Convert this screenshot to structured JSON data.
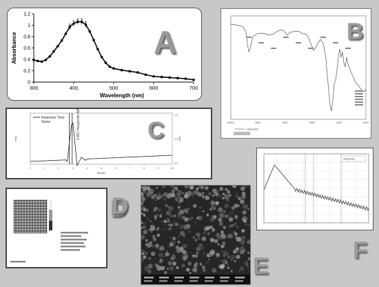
{
  "panels": {
    "A": {
      "letter": "A"
    },
    "B": {
      "letter": "B"
    },
    "C": {
      "letter": "C"
    },
    "D": {
      "letter": "D"
    },
    "E": {
      "letter": "E"
    },
    "F": {
      "letter": "F"
    }
  },
  "chart_data": [
    {
      "panel": "A",
      "type": "line",
      "xlabel": "Wavelength (nm)",
      "ylabel": "Absorbance",
      "xlim": [
        300,
        700
      ],
      "ylim": [
        0,
        1.2
      ],
      "xticks": [
        300,
        400,
        500,
        600,
        700
      ],
      "yticks": [
        0,
        0.2,
        0.4,
        0.6,
        0.8,
        1,
        1.2
      ],
      "series": [
        {
          "x": [
            300,
            310,
            320,
            330,
            340,
            350,
            360,
            370,
            380,
            390,
            400,
            410,
            420,
            430,
            440,
            450,
            460,
            470,
            480,
            490,
            500,
            520,
            540,
            560,
            580,
            600,
            620,
            640,
            660,
            680,
            700
          ],
          "y": [
            0.39,
            0.37,
            0.36,
            0.39,
            0.45,
            0.54,
            0.63,
            0.73,
            0.85,
            0.97,
            1.03,
            1.06,
            1.06,
            1.01,
            0.89,
            0.74,
            0.58,
            0.44,
            0.34,
            0.27,
            0.24,
            0.21,
            0.19,
            0.17,
            0.13,
            0.1,
            0.09,
            0.08,
            0.07,
            0.06,
            0.04
          ]
        }
      ]
    },
    {
      "panel": "C",
      "type": "line",
      "legend": [
        "Retention Time",
        "Name"
      ],
      "annotations": [
        "3.887 Hesperidin AAP"
      ],
      "xlabel": "Minutes",
      "ylabel_left": "mAU",
      "ylabel_right": "mAU",
      "xticks": [
        0,
        1,
        2,
        3,
        4,
        5,
        6,
        7,
        8,
        9,
        10
      ],
      "yticks_right": [
        "1.0",
        "0.5",
        "0.0"
      ]
    },
    {
      "panel": "B",
      "type": "line",
      "legend": [
        "Hesperidin"
      ],
      "xticks": [
        "4000.0",
        "3000",
        "2000",
        "1500",
        "1000",
        "400.0"
      ]
    },
    {
      "panel": "F",
      "type": "line",
      "legend": [
        "Hesperidin"
      ]
    }
  ]
}
